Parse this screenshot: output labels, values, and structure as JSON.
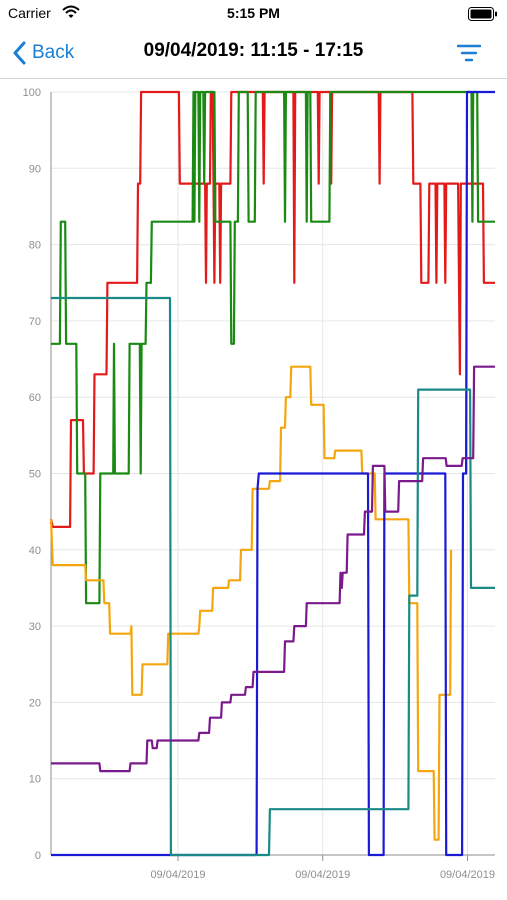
{
  "status_bar": {
    "carrier": "Carrier",
    "time": "5:15 PM",
    "icons": [
      "wifi-icon",
      "battery-icon"
    ]
  },
  "nav": {
    "back_label": "Back",
    "title": "09/04/2019: 11:15 - 17:15",
    "filter_icon": "filter-icon",
    "accent_color": "#1a7fd4"
  },
  "chart_data": {
    "type": "line",
    "title": "",
    "xlabel": "",
    "ylabel": "",
    "x_range": [
      0,
      100
    ],
    "ylim": [
      0,
      100
    ],
    "y_ticks": [
      0,
      10,
      20,
      30,
      40,
      50,
      60,
      70,
      80,
      90,
      100
    ],
    "x_tick_labels": [
      {
        "x": 28.6,
        "label": "09/04/2019"
      },
      {
        "x": 61.2,
        "label": "09/04/2019"
      },
      {
        "x": 93.8,
        "label": "09/04/2019"
      }
    ],
    "grid": true,
    "legend": "none",
    "series": [
      {
        "color": "#e21a1a",
        "points": [
          [
            0,
            44
          ],
          [
            0.4,
            43
          ],
          [
            4.3,
            43
          ],
          [
            4.5,
            57
          ],
          [
            7.2,
            57
          ],
          [
            7.4,
            50
          ],
          [
            9.6,
            50
          ],
          [
            9.8,
            63
          ],
          [
            12.5,
            63
          ],
          [
            12.7,
            75
          ],
          [
            19.4,
            75
          ],
          [
            19.6,
            88
          ],
          [
            20.1,
            88
          ],
          [
            20.3,
            100
          ],
          [
            28.8,
            100
          ],
          [
            29,
            88
          ],
          [
            34.7,
            88
          ],
          [
            34.9,
            75
          ],
          [
            35.1,
            88
          ],
          [
            35.8,
            88
          ],
          [
            36,
            100
          ],
          [
            36.4,
            100
          ],
          [
            36.6,
            88
          ],
          [
            36.8,
            75
          ],
          [
            37,
            88
          ],
          [
            37.9,
            88
          ],
          [
            38.1,
            75
          ],
          [
            38.3,
            88
          ],
          [
            40.4,
            88
          ],
          [
            40.6,
            100
          ],
          [
            47.7,
            100
          ],
          [
            47.9,
            88
          ],
          [
            48.1,
            100
          ],
          [
            54.6,
            100
          ],
          [
            54.8,
            75
          ],
          [
            55,
            100
          ],
          [
            60.1,
            100
          ],
          [
            60.3,
            88
          ],
          [
            60.5,
            100
          ],
          [
            62.9,
            100
          ],
          [
            63.1,
            88
          ],
          [
            63.3,
            100
          ],
          [
            73.8,
            100
          ],
          [
            74,
            88
          ],
          [
            74.2,
            100
          ],
          [
            81.4,
            100
          ],
          [
            81.6,
            88
          ],
          [
            83.2,
            88
          ],
          [
            83.4,
            75
          ],
          [
            85,
            75
          ],
          [
            85.2,
            88
          ],
          [
            86.6,
            88
          ],
          [
            86.8,
            75
          ],
          [
            87,
            88
          ],
          [
            88.6,
            88
          ],
          [
            88.8,
            75
          ],
          [
            89,
            88
          ],
          [
            91.7,
            88
          ],
          [
            91.9,
            75
          ],
          [
            92.1,
            63
          ],
          [
            92.3,
            88
          ],
          [
            97.3,
            88
          ],
          [
            97.5,
            75
          ],
          [
            100,
            75
          ]
        ]
      },
      {
        "color": "#1a8a12",
        "points": [
          [
            0,
            67
          ],
          [
            2,
            67
          ],
          [
            2.2,
            83
          ],
          [
            3.2,
            83
          ],
          [
            3.4,
            67
          ],
          [
            5.7,
            67
          ],
          [
            5.9,
            50
          ],
          [
            7.7,
            50
          ],
          [
            7.9,
            33
          ],
          [
            10.9,
            33
          ],
          [
            11.1,
            50
          ],
          [
            14,
            50
          ],
          [
            14.2,
            67
          ],
          [
            14.4,
            50
          ],
          [
            17.5,
            50
          ],
          [
            17.7,
            67
          ],
          [
            20,
            67
          ],
          [
            20.2,
            50
          ],
          [
            20.4,
            67
          ],
          [
            21.3,
            67
          ],
          [
            21.5,
            75
          ],
          [
            22.5,
            75
          ],
          [
            22.7,
            83
          ],
          [
            31.9,
            83
          ],
          [
            32.1,
            100
          ],
          [
            32.3,
            83
          ],
          [
            32.5,
            100
          ],
          [
            33.2,
            100
          ],
          [
            33.4,
            83
          ],
          [
            33.6,
            100
          ],
          [
            34.3,
            100
          ],
          [
            34.5,
            88
          ],
          [
            34.7,
            100
          ],
          [
            36.8,
            100
          ],
          [
            37,
            83
          ],
          [
            40.4,
            83
          ],
          [
            40.6,
            67
          ],
          [
            41.2,
            67
          ],
          [
            41.4,
            83
          ],
          [
            42.1,
            83
          ],
          [
            42.3,
            100
          ],
          [
            44.3,
            100
          ],
          [
            44.5,
            83
          ],
          [
            45.9,
            83
          ],
          [
            46.1,
            100
          ],
          [
            52.5,
            100
          ],
          [
            52.7,
            83
          ],
          [
            52.9,
            100
          ],
          [
            57.4,
            100
          ],
          [
            57.6,
            83
          ],
          [
            57.8,
            100
          ],
          [
            58.4,
            100
          ],
          [
            58.6,
            83
          ],
          [
            62.7,
            83
          ],
          [
            62.9,
            100
          ],
          [
            94.7,
            100
          ],
          [
            94.9,
            83
          ],
          [
            95.1,
            100
          ],
          [
            96,
            100
          ],
          [
            96.2,
            83
          ],
          [
            100,
            83
          ]
        ]
      },
      {
        "color": "#f5a60f",
        "points": [
          [
            0,
            44
          ],
          [
            0.4,
            38
          ],
          [
            7.7,
            38
          ],
          [
            7.9,
            36
          ],
          [
            11.8,
            36
          ],
          [
            12,
            33
          ],
          [
            13.1,
            33
          ],
          [
            13.3,
            29
          ],
          [
            17.9,
            29
          ],
          [
            18.1,
            30
          ],
          [
            18.3,
            21
          ],
          [
            20.4,
            21
          ],
          [
            20.6,
            25
          ],
          [
            26.2,
            25
          ],
          [
            26.4,
            29
          ],
          [
            33.2,
            29
          ],
          [
            33.4,
            30
          ],
          [
            33.6,
            32
          ],
          [
            36.3,
            32
          ],
          [
            36.5,
            35
          ],
          [
            39.9,
            35
          ],
          [
            40.1,
            36
          ],
          [
            42.6,
            36
          ],
          [
            42.8,
            40
          ],
          [
            45.2,
            40
          ],
          [
            45.4,
            48
          ],
          [
            49.1,
            48
          ],
          [
            49.3,
            49
          ],
          [
            51.6,
            49
          ],
          [
            51.8,
            56
          ],
          [
            52.7,
            56
          ],
          [
            52.9,
            60
          ],
          [
            53.9,
            60
          ],
          [
            54.1,
            64
          ],
          [
            58.4,
            64
          ],
          [
            58.6,
            59
          ],
          [
            61.4,
            59
          ],
          [
            61.6,
            52
          ],
          [
            63.8,
            52
          ],
          [
            64,
            53
          ],
          [
            69.9,
            53
          ],
          [
            70.1,
            50
          ],
          [
            72.9,
            50
          ],
          [
            73.1,
            44
          ],
          [
            80.5,
            44
          ],
          [
            80.7,
            33
          ],
          [
            82.5,
            33
          ],
          [
            82.7,
            11
          ],
          [
            86.2,
            11
          ],
          [
            86.4,
            2
          ],
          [
            87.3,
            2
          ],
          [
            87.5,
            21
          ],
          [
            89.9,
            21
          ],
          [
            90.1,
            40
          ]
        ]
      },
      {
        "color": "#1a1ad6",
        "points": [
          [
            0,
            0
          ],
          [
            46.3,
            0
          ],
          [
            46.5,
            48
          ],
          [
            46.8,
            50
          ],
          [
            71.4,
            50
          ],
          [
            71.6,
            0
          ],
          [
            74.9,
            0
          ],
          [
            75.1,
            50
          ],
          [
            88.8,
            50
          ],
          [
            89,
            0
          ],
          [
            92.6,
            0
          ],
          [
            92.8,
            50
          ],
          [
            93.5,
            50
          ],
          [
            93.7,
            100
          ],
          [
            100,
            100
          ]
        ]
      },
      {
        "color": "#1a8a86",
        "points": [
          [
            0,
            73
          ],
          [
            26.8,
            73
          ],
          [
            27,
            0
          ],
          [
            49.1,
            0
          ],
          [
            49.3,
            6
          ],
          [
            80.5,
            6
          ],
          [
            80.7,
            34
          ],
          [
            82.5,
            34
          ],
          [
            82.7,
            61
          ],
          [
            94.4,
            61
          ],
          [
            94.6,
            35
          ],
          [
            100,
            35
          ]
        ]
      },
      {
        "color": "#7a1a8c",
        "points": [
          [
            0,
            12
          ],
          [
            10.9,
            12
          ],
          [
            11.1,
            11
          ],
          [
            17.7,
            11
          ],
          [
            17.9,
            12
          ],
          [
            21.5,
            12
          ],
          [
            21.7,
            15
          ],
          [
            22.7,
            15
          ],
          [
            22.9,
            14
          ],
          [
            23.8,
            14
          ],
          [
            24,
            15
          ],
          [
            33.2,
            15
          ],
          [
            33.4,
            16
          ],
          [
            35.6,
            16
          ],
          [
            35.8,
            18
          ],
          [
            38.3,
            18
          ],
          [
            38.5,
            20
          ],
          [
            40.4,
            20
          ],
          [
            40.6,
            21
          ],
          [
            43.7,
            21
          ],
          [
            43.9,
            22
          ],
          [
            45.4,
            22
          ],
          [
            45.6,
            24
          ],
          [
            52.5,
            24
          ],
          [
            52.7,
            28
          ],
          [
            54.6,
            28
          ],
          [
            54.8,
            30
          ],
          [
            57.4,
            30
          ],
          [
            57.6,
            33
          ],
          [
            65,
            33
          ],
          [
            65.2,
            37
          ],
          [
            65.5,
            35
          ],
          [
            65.7,
            37
          ],
          [
            66.6,
            37
          ],
          [
            66.8,
            42
          ],
          [
            70.5,
            42
          ],
          [
            70.7,
            45
          ],
          [
            72.3,
            45
          ],
          [
            72.5,
            51
          ],
          [
            75.1,
            51
          ],
          [
            75.3,
            45
          ],
          [
            78.2,
            45
          ],
          [
            78.4,
            49
          ],
          [
            83.6,
            49
          ],
          [
            83.8,
            52
          ],
          [
            88.9,
            52
          ],
          [
            89.1,
            51
          ],
          [
            92.5,
            51
          ],
          [
            92.7,
            52
          ],
          [
            95.1,
            52
          ],
          [
            95.3,
            64
          ],
          [
            100,
            64
          ]
        ]
      }
    ]
  }
}
